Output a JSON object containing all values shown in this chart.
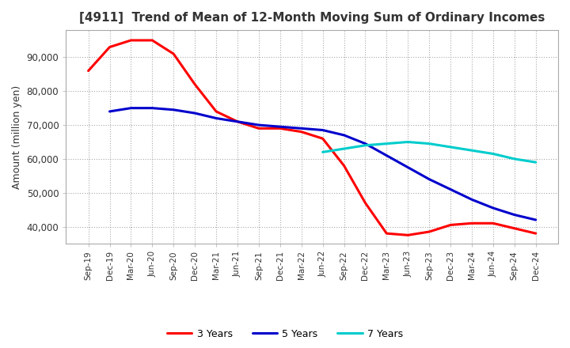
{
  "title": "[4911]  Trend of Mean of 12-Month Moving Sum of Ordinary Incomes",
  "ylabel": "Amount (million yen)",
  "title_color": "#333333",
  "background_color": "#ffffff",
  "plot_background": "#ffffff",
  "grid_color": "#aaaaaa",
  "x_labels": [
    "Sep-19",
    "Dec-19",
    "Mar-20",
    "Jun-20",
    "Sep-20",
    "Dec-20",
    "Mar-21",
    "Jun-21",
    "Sep-21",
    "Dec-21",
    "Mar-22",
    "Jun-22",
    "Sep-22",
    "Dec-22",
    "Mar-23",
    "Jun-23",
    "Sep-23",
    "Dec-23",
    "Mar-24",
    "Jun-24",
    "Sep-24",
    "Dec-24"
  ],
  "series": {
    "3 Years": {
      "color": "#ff0000",
      "values": [
        86000,
        93000,
        95000,
        95000,
        91000,
        82000,
        74000,
        71000,
        69000,
        69000,
        68000,
        66000,
        58000,
        47000,
        38000,
        37500,
        38500,
        40500,
        41000,
        41000,
        39500,
        38000
      ]
    },
    "5 Years": {
      "color": "#0000cc",
      "values": [
        null,
        74000,
        75000,
        75000,
        74500,
        73500,
        72000,
        71000,
        70000,
        69500,
        69000,
        68500,
        67000,
        64500,
        61000,
        57500,
        54000,
        51000,
        48000,
        45500,
        43500,
        42000
      ]
    },
    "7 Years": {
      "color": "#00cccc",
      "values": [
        null,
        null,
        null,
        null,
        null,
        null,
        null,
        null,
        null,
        null,
        null,
        62000,
        63000,
        64000,
        64500,
        65000,
        64500,
        63500,
        62500,
        61500,
        60000,
        59000
      ]
    },
    "10 Years": {
      "color": "#008000",
      "values": [
        null,
        null,
        null,
        null,
        null,
        null,
        null,
        null,
        null,
        null,
        null,
        null,
        null,
        null,
        null,
        null,
        null,
        null,
        null,
        null,
        null,
        null
      ]
    }
  },
  "ylim": [
    35000,
    98000
  ],
  "yticks": [
    40000,
    50000,
    60000,
    70000,
    80000,
    90000
  ],
  "linewidth": 2.2
}
